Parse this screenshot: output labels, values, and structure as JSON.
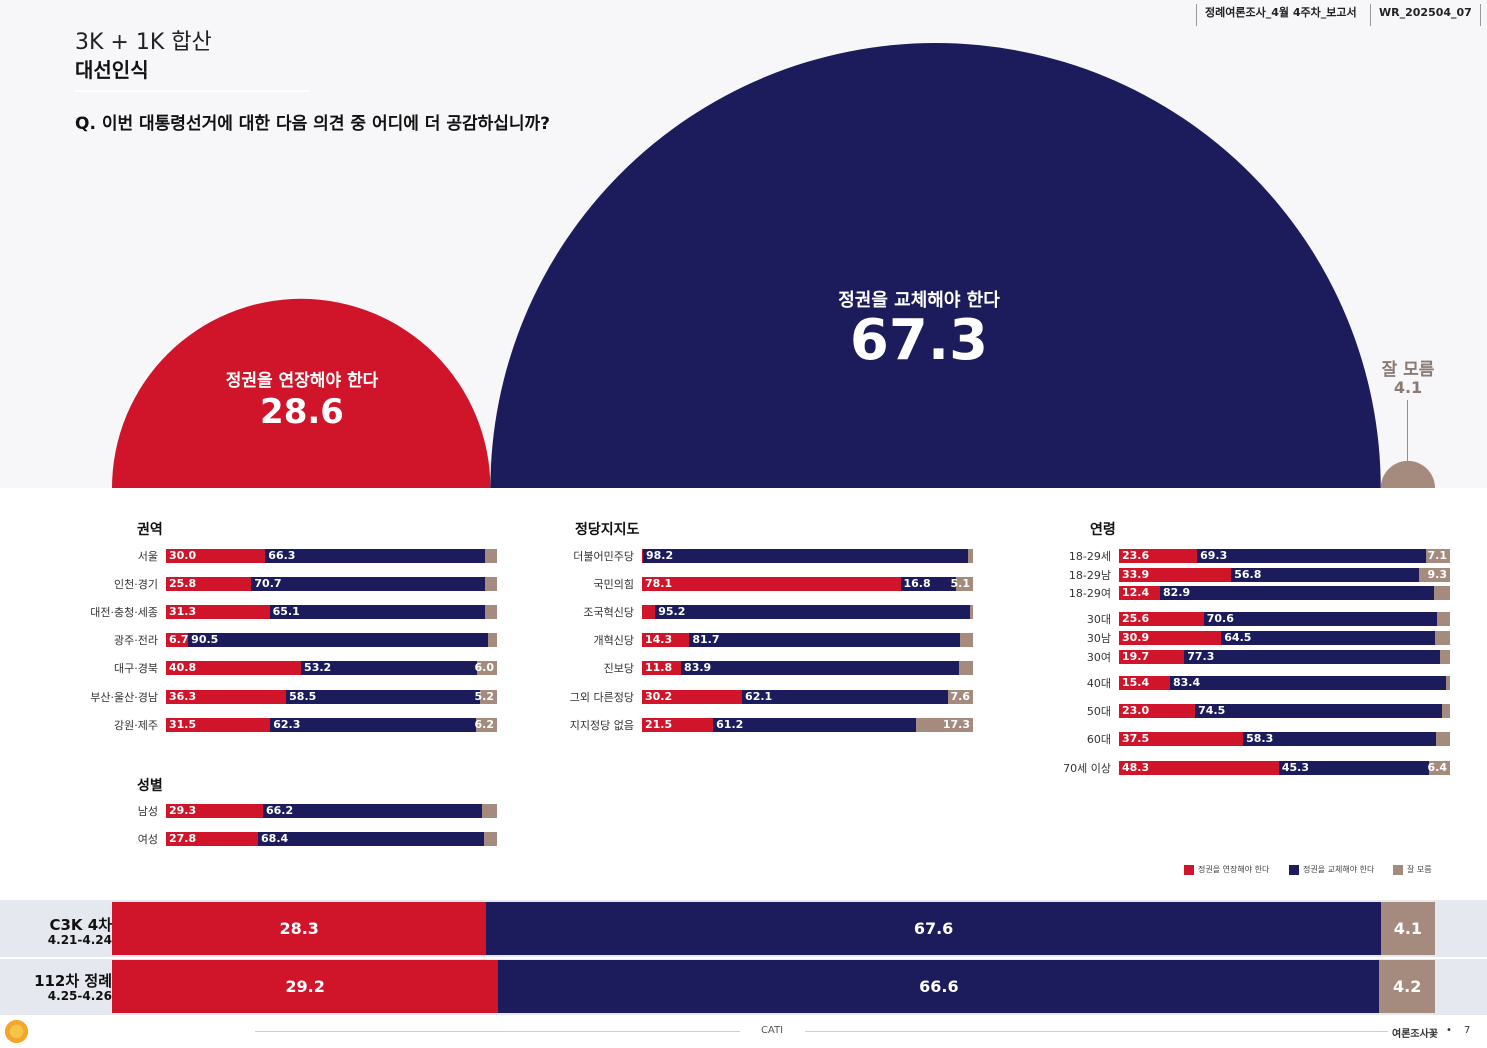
{
  "header": {
    "report_name": "정례여론조사_4월 4주차_보고서",
    "report_code": "WR_202504_07"
  },
  "title": {
    "super": "3K + 1K 합산",
    "main": "대선인식",
    "question": "Q. 이번 대통령선거에 대한 다음 의견 중 어디에 더 공감하십니까?"
  },
  "colors": {
    "extend": "#d0142a",
    "replace": "#1c1c5c",
    "unknown": "#a58a7e"
  },
  "chart_data": {
    "type": "bar",
    "overall": [
      {
        "label": "정권을 연장해야 한다",
        "value": 28.6
      },
      {
        "label": "정권을 교체해야 한다",
        "value": 67.3
      },
      {
        "label": "잘 모름",
        "value": 4.1
      }
    ],
    "legend": [
      "정권을 연장해야 한다",
      "정권을 교체해야 한다",
      "잘 모름"
    ],
    "groups": {
      "region": {
        "title": "권역",
        "rows": [
          {
            "label": "서울",
            "values": [
              30.0,
              66.3,
              3.7
            ],
            "text": [
              "30.0",
              "66.3",
              ""
            ]
          },
          {
            "label": "인천·경기",
            "values": [
              25.8,
              70.7,
              3.5
            ],
            "text": [
              "25.8",
              "70.7",
              ""
            ]
          },
          {
            "label": "대전·충청·세종",
            "values": [
              31.3,
              65.1,
              3.6
            ],
            "text": [
              "31.3",
              "65.1",
              ""
            ]
          },
          {
            "label": "광주·전라",
            "values": [
              6.7,
              90.5,
              2.8
            ],
            "text": [
              "6.7",
              "90.5",
              ""
            ]
          },
          {
            "label": "대구·경북",
            "values": [
              40.8,
              53.2,
              6.0
            ],
            "text": [
              "40.8",
              "53.2",
              "6.0"
            ]
          },
          {
            "label": "부산·울산·경남",
            "values": [
              36.3,
              58.5,
              5.2
            ],
            "text": [
              "36.3",
              "58.5",
              "5.2"
            ]
          },
          {
            "label": "강원·제주",
            "values": [
              31.5,
              62.3,
              6.2
            ],
            "text": [
              "31.5",
              "62.3",
              "6.2"
            ]
          }
        ]
      },
      "gender": {
        "title": "성별",
        "rows": [
          {
            "label": "남성",
            "values": [
              29.3,
              66.2,
              4.5
            ],
            "text": [
              "29.3",
              "66.2",
              ""
            ]
          },
          {
            "label": "여성",
            "values": [
              27.8,
              68.4,
              3.8
            ],
            "text": [
              "27.8",
              "68.4",
              ""
            ]
          }
        ]
      },
      "party": {
        "title": "정당지지도",
        "rows": [
          {
            "label": "더불어민주당",
            "values": [
              0.3,
              98.2,
              1.5
            ],
            "text": [
              "",
              "98.2",
              ""
            ]
          },
          {
            "label": "국민의힘",
            "values": [
              78.1,
              16.8,
              5.1
            ],
            "text": [
              "78.1",
              "16.8",
              "5.1"
            ]
          },
          {
            "label": "조국혁신당",
            "values": [
              4.0,
              95.2,
              0.8
            ],
            "text": [
              "",
              "95.2",
              ""
            ]
          },
          {
            "label": "개혁신당",
            "values": [
              14.3,
              81.7,
              4.0
            ],
            "text": [
              "14.3",
              "81.7",
              ""
            ]
          },
          {
            "label": "진보당",
            "values": [
              11.8,
              83.9,
              4.3
            ],
            "text": [
              "11.8",
              "83.9",
              ""
            ]
          },
          {
            "label": "그외 다른정당",
            "values": [
              30.2,
              62.1,
              7.6
            ],
            "text": [
              "30.2",
              "62.1",
              "7.6"
            ]
          },
          {
            "label": "지지정당 없음",
            "values": [
              21.5,
              61.2,
              17.3
            ],
            "text": [
              "21.5",
              "61.2",
              "17.3"
            ]
          }
        ]
      },
      "age": {
        "title": "연령",
        "rows": [
          {
            "label": "18-29세",
            "values": [
              23.6,
              69.3,
              7.1
            ],
            "text": [
              "23.6",
              "69.3",
              "7.1"
            ]
          },
          {
            "label": "18-29남",
            "values": [
              33.9,
              56.8,
              9.3
            ],
            "text": [
              "33.9",
              "56.8",
              "9.3"
            ]
          },
          {
            "label": "18-29여",
            "values": [
              12.4,
              82.9,
              4.7
            ],
            "text": [
              "12.4",
              "82.9",
              ""
            ]
          },
          {
            "label": "30대",
            "values": [
              25.6,
              70.6,
              3.8
            ],
            "text": [
              "25.6",
              "70.6",
              ""
            ]
          },
          {
            "label": "30남",
            "values": [
              30.9,
              64.5,
              4.6
            ],
            "text": [
              "30.9",
              "64.5",
              ""
            ]
          },
          {
            "label": "30여",
            "values": [
              19.7,
              77.3,
              3.0
            ],
            "text": [
              "19.7",
              "77.3",
              ""
            ]
          },
          {
            "label": "40대",
            "values": [
              15.4,
              83.4,
              1.2
            ],
            "text": [
              "15.4",
              "83.4",
              ""
            ]
          },
          {
            "label": "50대",
            "values": [
              23.0,
              74.5,
              2.5
            ],
            "text": [
              "23.0",
              "74.5",
              ""
            ]
          },
          {
            "label": "60대",
            "values": [
              37.5,
              58.3,
              4.2
            ],
            "text": [
              "37.5",
              "58.3",
              ""
            ]
          },
          {
            "label": "70세 이상",
            "values": [
              48.3,
              45.3,
              6.4
            ],
            "text": [
              "48.3",
              "45.3",
              "6.4"
            ]
          }
        ]
      }
    },
    "comparison": [
      {
        "label": "C3K 4차",
        "period": "4.21-4.24",
        "values": [
          28.3,
          67.6,
          4.1
        ]
      },
      {
        "label": "112차 정례",
        "period": "4.25-4.26",
        "values": [
          29.2,
          66.6,
          4.2
        ]
      }
    ]
  },
  "footer": {
    "method": "CATI",
    "publisher": "여론조사꽃",
    "page": "7"
  }
}
